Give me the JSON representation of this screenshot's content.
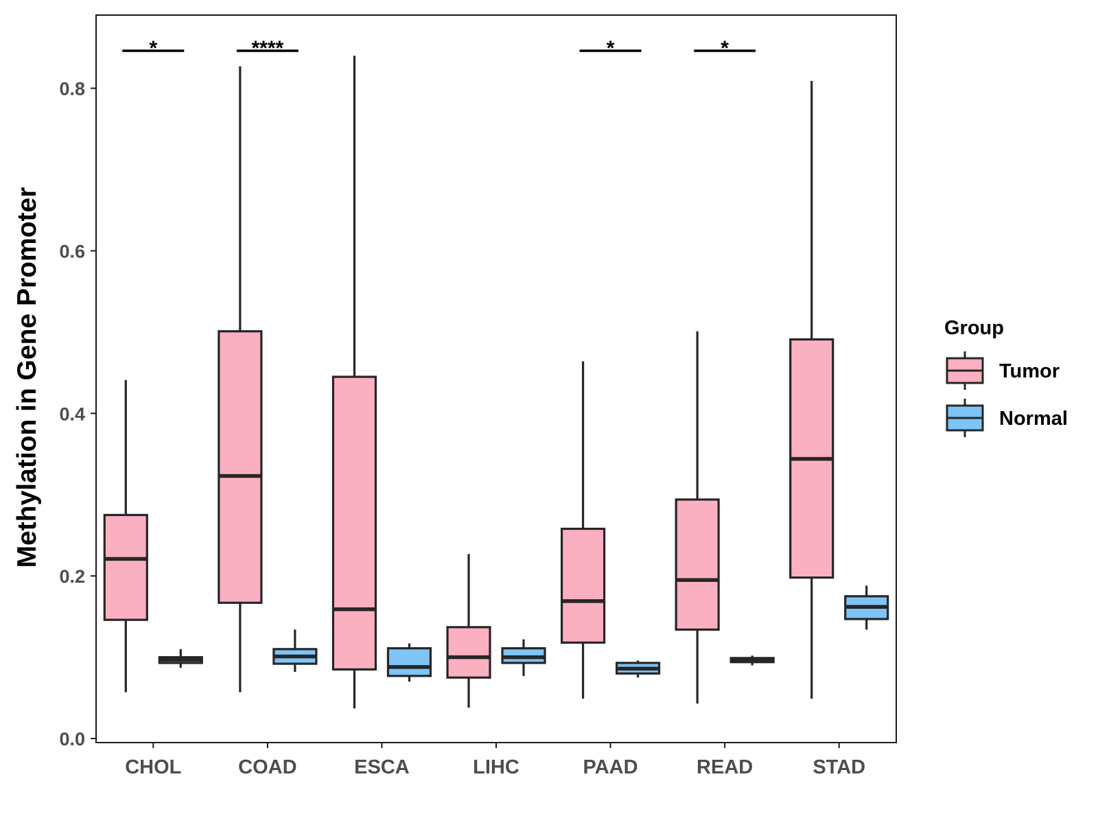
{
  "chart_data": {
    "type": "boxplot",
    "title": "",
    "xlabel": "",
    "ylabel": "Methylation in Gene Promoter",
    "ylim": [
      -0.005,
      0.89
    ],
    "yticks": [
      0.0,
      0.2,
      0.4,
      0.6,
      0.8
    ],
    "ytick_labels": [
      "0.0",
      "0.2",
      "0.4",
      "0.6",
      "0.8"
    ],
    "categories": [
      "CHOL",
      "COAD",
      "ESCA",
      "LIHC",
      "PAAD",
      "READ",
      "STAD"
    ],
    "legend": {
      "title": "Group",
      "position": "right",
      "entries": [
        {
          "name": "Tumor",
          "color": "#fbb0c1"
        },
        {
          "name": "Normal",
          "color": "#7ec4f7"
        }
      ]
    },
    "series": [
      {
        "name": "Tumor",
        "color": "#fbb0c1",
        "boxes": [
          {
            "category": "CHOL",
            "min": 0.057,
            "q1": 0.146,
            "median": 0.221,
            "q3": 0.275,
            "max": 0.441
          },
          {
            "category": "COAD",
            "min": 0.057,
            "q1": 0.167,
            "median": 0.323,
            "q3": 0.501,
            "max": 0.827
          },
          {
            "category": "ESCA",
            "min": 0.037,
            "q1": 0.085,
            "median": 0.159,
            "q3": 0.445,
            "max": 0.84
          },
          {
            "category": "LIHC",
            "min": 0.038,
            "q1": 0.075,
            "median": 0.1,
            "q3": 0.137,
            "max": 0.227
          },
          {
            "category": "PAAD",
            "min": 0.049,
            "q1": 0.118,
            "median": 0.169,
            "q3": 0.258,
            "max": 0.464
          },
          {
            "category": "READ",
            "min": 0.043,
            "q1": 0.134,
            "median": 0.195,
            "q3": 0.294,
            "max": 0.501
          },
          {
            "category": "STAD",
            "min": 0.049,
            "q1": 0.198,
            "median": 0.344,
            "q3": 0.491,
            "max": 0.809
          }
        ]
      },
      {
        "name": "Normal",
        "color": "#7ec4f7",
        "boxes": [
          {
            "category": "CHOL",
            "min": 0.087,
            "q1": 0.093,
            "median": 0.097,
            "q3": 0.1,
            "max": 0.11
          },
          {
            "category": "COAD",
            "min": 0.082,
            "q1": 0.092,
            "median": 0.101,
            "q3": 0.11,
            "max": 0.134
          },
          {
            "category": "ESCA",
            "min": 0.07,
            "q1": 0.077,
            "median": 0.088,
            "q3": 0.111,
            "max": 0.117
          },
          {
            "category": "LIHC",
            "min": 0.077,
            "q1": 0.093,
            "median": 0.1,
            "q3": 0.111,
            "max": 0.122
          },
          {
            "category": "PAAD",
            "min": 0.075,
            "q1": 0.08,
            "median": 0.086,
            "q3": 0.093,
            "max": 0.096
          },
          {
            "category": "READ",
            "min": 0.09,
            "q1": 0.094,
            "median": 0.097,
            "q3": 0.099,
            "max": 0.102
          },
          {
            "category": "STAD",
            "min": 0.134,
            "q1": 0.147,
            "median": 0.162,
            "q3": 0.175,
            "max": 0.188
          }
        ]
      }
    ],
    "annotations": [
      {
        "category": "CHOL",
        "label": "*"
      },
      {
        "category": "COAD",
        "label": "****"
      },
      {
        "category": "PAAD",
        "label": "*"
      },
      {
        "category": "READ",
        "label": "*"
      }
    ]
  }
}
